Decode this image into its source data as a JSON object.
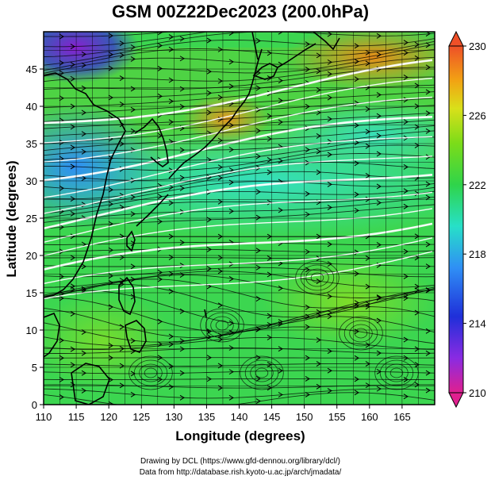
{
  "title": "GSM 00Z22Dec2023 (200.0hPa)",
  "map": {
    "xlabel": "Longitude (degrees)",
    "ylabel": "Latitude  (degrees)",
    "xlim": [
      110,
      170
    ],
    "ylim": [
      0,
      50
    ],
    "xticks": [
      "110",
      "115",
      "120",
      "125",
      "130",
      "135",
      "140",
      "145",
      "150",
      "155",
      "160",
      "165"
    ],
    "yticks": [
      "0",
      "5",
      "10",
      "15",
      "20",
      "25",
      "30",
      "35",
      "40",
      "45"
    ],
    "grid": true,
    "field": "temperature shading with wind streamlines",
    "streamline_color": "#000000",
    "jet_streamline_color": "#ffffff",
    "coastline_color": "#000000"
  },
  "colorbar": {
    "ticks": [
      "230",
      "226",
      "222",
      "218",
      "214",
      "210"
    ],
    "range": [
      210,
      230
    ],
    "colors": [
      "#e0208f",
      "#8a2be2",
      "#1f2fd9",
      "#2f8ff5",
      "#27e0c8",
      "#2fd44a",
      "#7cdc19",
      "#d9e01a",
      "#f2a313",
      "#ee5028"
    ]
  },
  "credits": {
    "line1": "Drawing by DCL (https://www.gfd-dennou.org/library/dcl/)",
    "line2": "Data from http://database.rish.kyoto-u.ac.jp/arch/jmadata/"
  }
}
